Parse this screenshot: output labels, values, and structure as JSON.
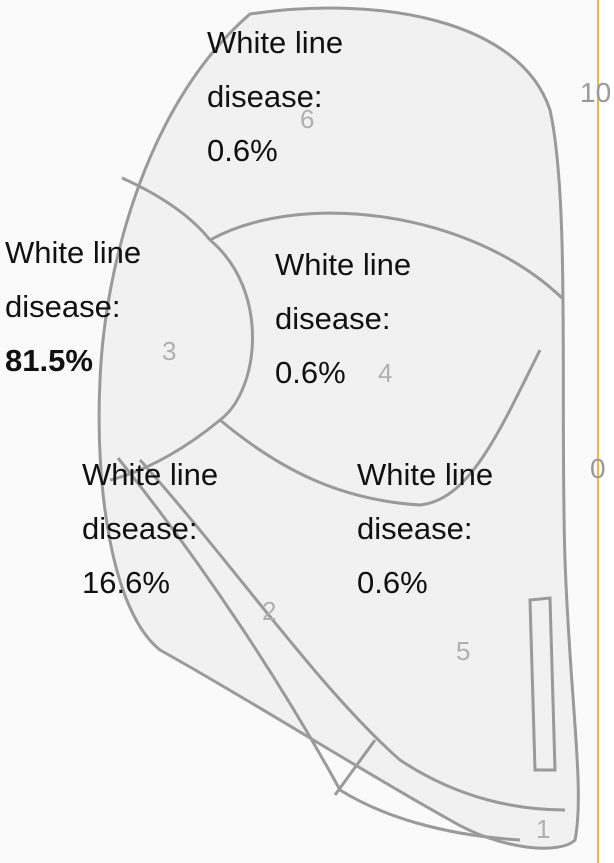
{
  "zones": [
    {
      "number": "6",
      "label": "White line disease:",
      "value": "0.6%"
    },
    {
      "number": "3",
      "label": "White line disease:",
      "value": "81.5%"
    },
    {
      "number": "4",
      "label": "White line disease:",
      "value": "0.6%"
    },
    {
      "number": "2",
      "label": "White line disease:",
      "value": "16.6%"
    },
    {
      "number": "5",
      "label": "White line disease:",
      "value": "0.6%"
    },
    {
      "number": "1"
    }
  ],
  "edge_labels": [
    "10",
    "0"
  ]
}
